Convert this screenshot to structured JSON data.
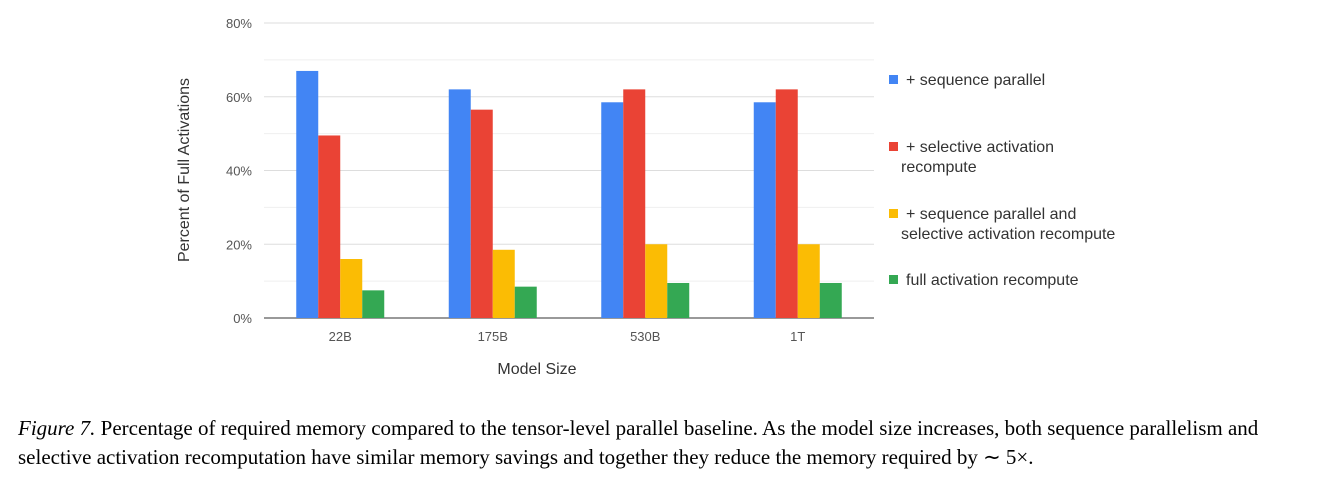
{
  "chart_data": {
    "type": "bar",
    "title": "",
    "xlabel": "Model Size",
    "ylabel": "Percent of Full Activations",
    "categories": [
      "22B",
      "175B",
      "530B",
      "1T"
    ],
    "ylim": [
      0,
      80
    ],
    "yticks": [
      "0%",
      "20%",
      "40%",
      "60%",
      "80%"
    ],
    "ytick_values": [
      0,
      20,
      40,
      60,
      80
    ],
    "grid": true,
    "legend_position": "right",
    "series": [
      {
        "name": "+ sequence parallel",
        "legend_lines": [
          "+ sequence parallel"
        ],
        "color": "#4285F4",
        "values": [
          67,
          62,
          58.5,
          58.5
        ]
      },
      {
        "name": "+ selective activation recompute",
        "legend_lines": [
          "+ selective activation",
          "recompute"
        ],
        "color": "#EA4335",
        "values": [
          49.5,
          56.5,
          62,
          62
        ]
      },
      {
        "name": "+ sequence parallel and selective activation recompute",
        "legend_lines": [
          "+ sequence parallel and",
          "selective activation recompute"
        ],
        "color": "#FBBC04",
        "values": [
          16,
          18.5,
          20,
          20
        ]
      },
      {
        "name": "full activation recompute",
        "legend_lines": [
          "full activation recompute"
        ],
        "color": "#34A853",
        "values": [
          7.5,
          8.5,
          9.5,
          9.5
        ]
      }
    ]
  },
  "caption": {
    "label": "Figure 7.",
    "text": " Percentage of required memory compared to the tensor-level parallel baseline. As the model size increases, both sequence parallelism and selective activation recomputation have similar memory savings and together they reduce the memory required by ∼ 5×."
  }
}
